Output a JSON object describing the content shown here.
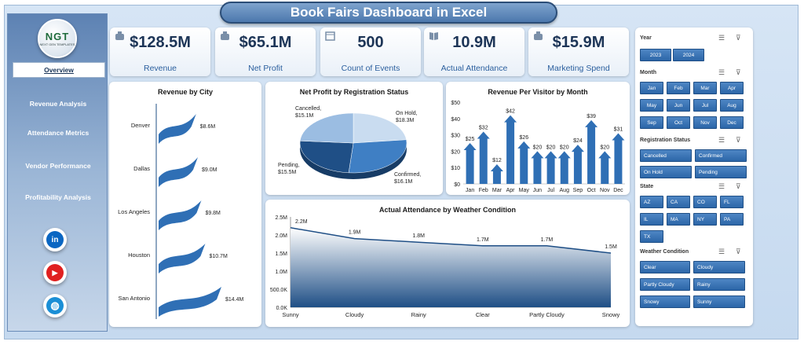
{
  "header": {
    "title": "Book Fairs Dashboard in Excel"
  },
  "sidebar": {
    "logo_text": "NGT",
    "logo_subtext": "NEXT GEN TEMPLATES",
    "items": [
      {
        "label": "Overview"
      },
      {
        "label": "Revenue Analysis"
      },
      {
        "label": "Attendance Metrics"
      },
      {
        "label": "Vendor Performance"
      },
      {
        "label": "Profitability Analysis"
      }
    ],
    "social": [
      {
        "name": "linkedin",
        "glyph": "in",
        "color": "#0a66c2"
      },
      {
        "name": "youtube",
        "glyph": "▶",
        "color": "#e02020"
      },
      {
        "name": "web",
        "glyph": "◍",
        "color": "#1b8fd6"
      }
    ]
  },
  "kpis": [
    {
      "value": "$128.5M",
      "label": "Revenue",
      "icon": "money-bag-icon"
    },
    {
      "value": "$65.1M",
      "label": "Net Profit",
      "icon": "money-bag-icon"
    },
    {
      "value": "500",
      "label": "Count of Events",
      "icon": "calendar-icon"
    },
    {
      "value": "10.9M",
      "label": "Actual Attendance",
      "icon": "book-icon"
    },
    {
      "value": "$15.9M",
      "label": "Marketing Spend",
      "icon": "money-bag-icon"
    }
  ],
  "chart_data": [
    {
      "type": "bar",
      "title": "Revenue  by City",
      "categories": [
        "Denver",
        "Dallas",
        "Los Angeles",
        "Houston",
        "San Antonio"
      ],
      "values": [
        8.6,
        9.0,
        9.8,
        10.7,
        14.4
      ],
      "data_labels": [
        "$8.6M",
        "$9.0M",
        "$9.8M",
        "$10.7M",
        "$14.4M"
      ],
      "orientation": "horizontal",
      "color": "#2f6fb5"
    },
    {
      "type": "pie",
      "title": "Net Profit by Registration  Status",
      "categories": [
        "Cancelled",
        "On Hold",
        "Confirmed",
        "Pending"
      ],
      "values": [
        15.1,
        18.3,
        16.1,
        15.5
      ],
      "data_labels": [
        "Cancelled,\n$15.1M",
        "On Hold,\n$18.3M",
        "Confirmed,\n$16.1M",
        "Pending,\n$15.5M"
      ],
      "colors": [
        "#c9dcf0",
        "#3f7fc4",
        "#1f4f86",
        "#9bbde2"
      ]
    },
    {
      "type": "bar",
      "title": "Revenue  Per Visitor by Month",
      "categories": [
        "Jan",
        "Feb",
        "Mar",
        "Apr",
        "May",
        "Jun",
        "Jul",
        "Aug",
        "Sep",
        "Oct",
        "Nov",
        "Dec"
      ],
      "values": [
        25,
        32,
        12,
        42,
        26,
        20,
        20,
        20,
        24,
        39,
        20,
        31
      ],
      "data_labels": [
        "$25",
        "$32",
        "$12",
        "$42",
        "$26",
        "$20",
        "$20",
        "$20",
        "$24",
        "$39",
        "$20",
        "$31"
      ],
      "yticks": [
        "$0",
        "$10",
        "$20",
        "$30",
        "$40",
        "$50"
      ],
      "ylim": [
        0,
        50
      ],
      "color": "#2f6fb5"
    },
    {
      "type": "area",
      "title": "Actual Attendance by Weather Condition",
      "categories": [
        "Sunny",
        "Cloudy",
        "Rainy",
        "Clear",
        "Partly Cloudy",
        "Snowy"
      ],
      "values": [
        2.2,
        1.9,
        1.8,
        1.7,
        1.7,
        1.5
      ],
      "data_labels": [
        "2.2M",
        "1.9M",
        "1.8M",
        "1.7M",
        "1.7M",
        "1.5M"
      ],
      "yticks": [
        "0.0K",
        "500.0K",
        "1.0M",
        "1.5M",
        "2.0M",
        "2.5M"
      ],
      "ylim": [
        0,
        2.5
      ],
      "color": "#1f4f86"
    }
  ],
  "filters": {
    "year": {
      "title": "Year",
      "options": [
        "2023",
        "2024"
      ]
    },
    "month": {
      "title": "Month",
      "options": [
        "Jan",
        "Feb",
        "Mar",
        "Apr",
        "May",
        "Jun",
        "Jul",
        "Aug",
        "Sep",
        "Oct",
        "Nov",
        "Dec"
      ]
    },
    "registration": {
      "title": "Registration Status",
      "options": [
        "Cancelled",
        "Confirmed",
        "On Hold",
        "Pending"
      ]
    },
    "state": {
      "title": "State",
      "options": [
        "AZ",
        "CA",
        "CO",
        "FL",
        "IL",
        "MA",
        "NY",
        "PA",
        "TX"
      ]
    },
    "weather": {
      "title": "Weather Condition",
      "options": [
        "Clear",
        "Cloudy",
        "Partly Cloudy",
        "Rainy",
        "Snowy",
        "Sunny"
      ]
    }
  }
}
